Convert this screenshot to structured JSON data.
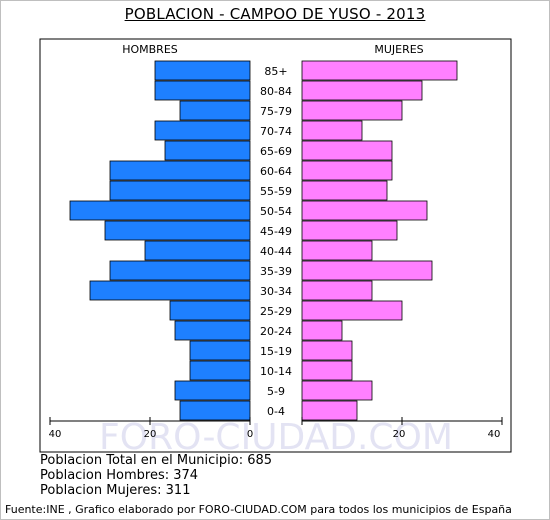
{
  "title": "POBLACION - CAMPOO DE YUSO - 2013",
  "chart_data": {
    "type": "bar",
    "orientation": "horizontal",
    "subtype": "population-pyramid",
    "categories": [
      "85+",
      "80-84",
      "75-79",
      "70-74",
      "65-69",
      "60-64",
      "55-59",
      "50-54",
      "45-49",
      "40-44",
      "35-39",
      "30-34",
      "25-29",
      "20-24",
      "15-19",
      "10-14",
      "5-9",
      "0-4"
    ],
    "series": [
      {
        "name": "HOMBRES",
        "color": "#1e80ff",
        "values": [
          19,
          19,
          14,
          19,
          17,
          28,
          28,
          36,
          29,
          21,
          28,
          32,
          16,
          15,
          12,
          12,
          15,
          14
        ]
      },
      {
        "name": "MUJERES",
        "color": "#ff80ff",
        "values": [
          31,
          24,
          20,
          12,
          18,
          18,
          17,
          25,
          19,
          14,
          26,
          14,
          20,
          8,
          10,
          10,
          14,
          11
        ]
      }
    ],
    "xlim": [
      0,
      40
    ],
    "ticks": [
      "40",
      "20",
      "0",
      "20",
      "40"
    ],
    "watermark": "FORO-CIUDAD.COM"
  },
  "stats": {
    "total": "Poblacion Total en el Municipio: 685",
    "hombres": "Poblacion Hombres: 374",
    "mujeres": "Poblacion Mujeres: 311"
  },
  "footer": "Fuente:INE , Grafico elaborado por FORO-CIUDAD.COM para todos los municipios de España"
}
